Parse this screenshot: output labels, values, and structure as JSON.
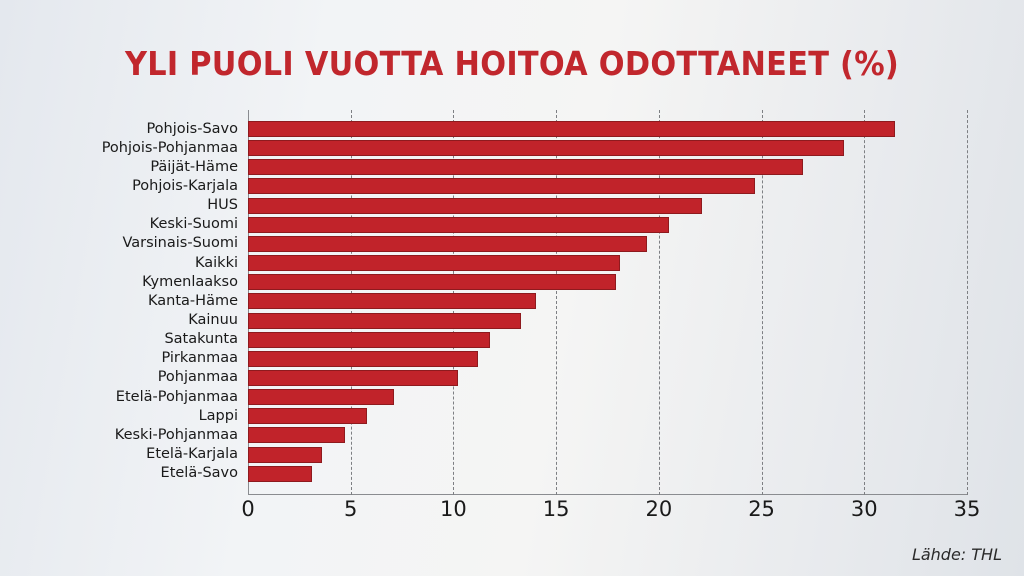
{
  "title": "YLI PUOLI VUOTTA HOITOA ODOTTANEET (%)",
  "source": "Lähde: THL",
  "colors": {
    "bar": "#c1232a",
    "title": "#c1272d"
  },
  "chart_data": {
    "type": "bar",
    "orientation": "horizontal",
    "title": "YLI PUOLI VUOTTA HOITOA ODOTTANEET (%)",
    "xlabel": "",
    "ylabel": "",
    "xlim": [
      0,
      35
    ],
    "x_ticks": [
      0,
      5,
      10,
      15,
      20,
      25,
      30,
      35
    ],
    "grid": "vertical dashed",
    "categories": [
      "Pohjois-Savo",
      "Pohjois-Pohjanmaa",
      "Päijät-Häme",
      "Pohjois-Karjala",
      "HUS",
      "Keski-Suomi",
      "Varsinais-Suomi",
      "Kaikki",
      "Kymenlaakso",
      "Kanta-Häme",
      "Kainuu",
      "Satakunta",
      "Pirkanmaa",
      "Pohjanmaa",
      "Etelä-Pohjanmaa",
      "Lappi",
      "Keski-Pohjanmaa",
      "Etelä-Karjala",
      "Etelä-Savo"
    ],
    "values": [
      31.5,
      29.0,
      27.0,
      24.7,
      22.1,
      20.5,
      19.4,
      18.1,
      17.9,
      14.0,
      13.3,
      11.8,
      11.2,
      10.2,
      7.1,
      5.8,
      4.7,
      3.6,
      3.1
    ],
    "source": "Lähde: THL"
  }
}
